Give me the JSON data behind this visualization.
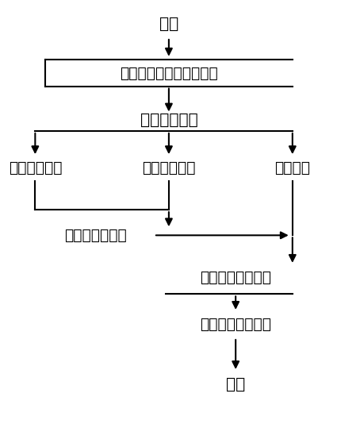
{
  "background": "#ffffff",
  "text_color": "#000000",
  "font_size": 13.5,
  "fig_width": 4.25,
  "fig_height": 5.39,
  "labels": {
    "start": "开始",
    "step1": "生成气体含量的数据向量",
    "step2": "设置参考矩阵",
    "step3a": "设置参考矩阵",
    "step3b": "设置均值向量",
    "step3c": "设置权重",
    "step4": "计算协方差矩阵",
    "step5": "计算加权马氏距离",
    "step6": "判别样本归属状态",
    "end": "结束"
  }
}
